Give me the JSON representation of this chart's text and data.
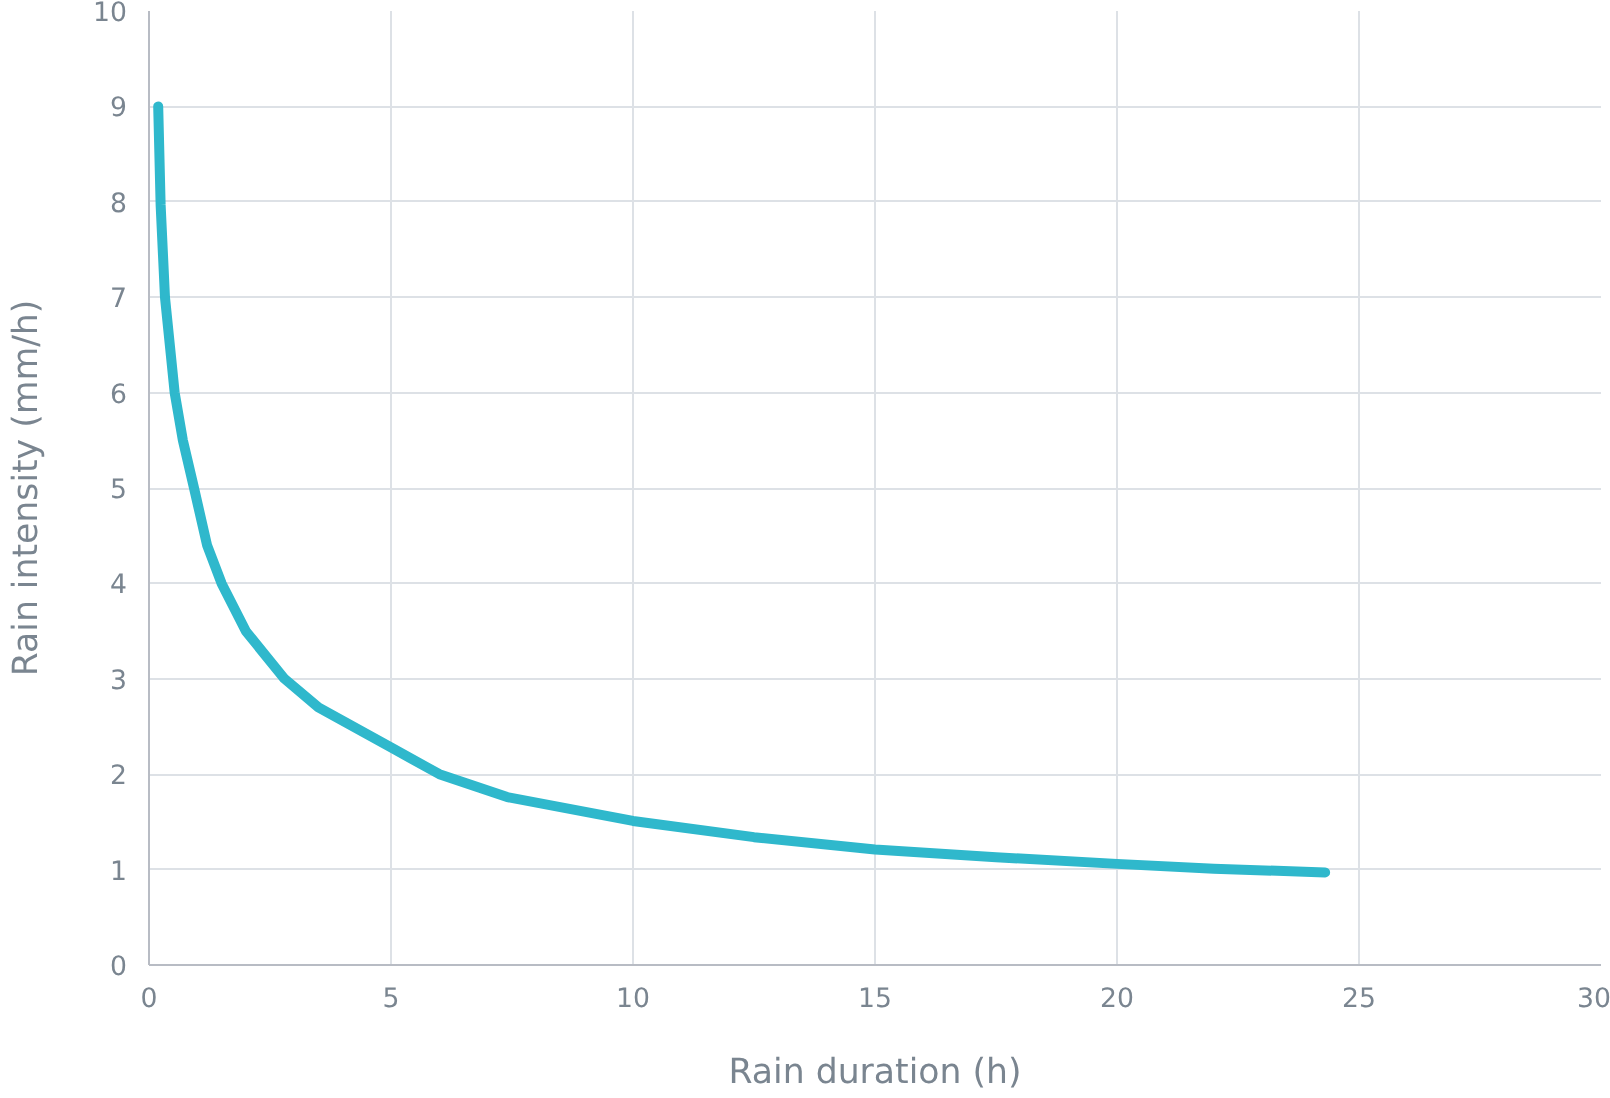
{
  "chart_data": {
    "type": "line",
    "xlabel": "Rain duration (h)",
    "ylabel": "Rain intensity (mm/h)",
    "x": [
      0.19,
      0.24,
      0.33,
      0.53,
      0.7,
      0.93,
      1.2,
      1.5,
      2,
      2.8,
      3.5,
      5,
      6,
      7.4,
      10,
      12.5,
      15,
      17.5,
      20,
      22,
      24.3
    ],
    "series": [
      {
        "color": "#2fb8cc",
        "values": [
          9.0,
          7.97,
          7.0,
          6.0,
          5.5,
          5.0,
          4.4,
          4.0,
          3.5,
          3.0,
          2.7,
          2.28,
          2.0,
          1.76,
          1.51,
          1.34,
          1.21,
          1.13,
          1.06,
          1.01,
          0.97
        ]
      }
    ],
    "xlim": [
      0,
      30
    ],
    "xticks": [
      0,
      5,
      10,
      15,
      20,
      25,
      30
    ],
    "ylim": [
      0,
      10
    ],
    "yticks": [
      0,
      1,
      2,
      3,
      4,
      5,
      6,
      7,
      8,
      9,
      10
    ],
    "grid": true,
    "marker": "none",
    "line_style": "solid"
  }
}
